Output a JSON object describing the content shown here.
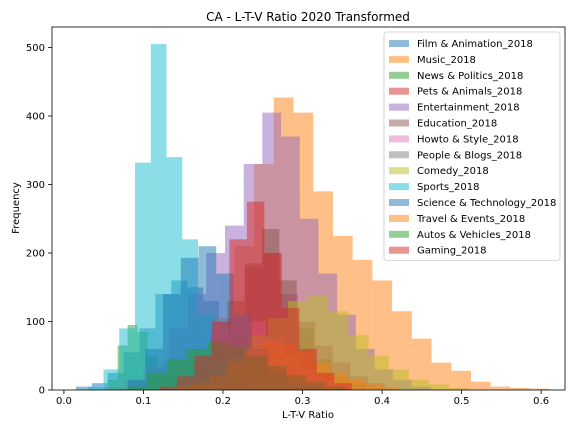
{
  "chart_data": {
    "type": "bar",
    "title": "CA - L-T-V Ratio 2020 Transformed",
    "xlabel": "L-T-V Ratio",
    "ylabel": "Frequency",
    "xlim": [
      -0.015,
      0.63
    ],
    "ylim": [
      0,
      530
    ],
    "xticks": [
      "0.0",
      "0.1",
      "0.2",
      "0.3",
      "0.4",
      "0.5",
      "0.6"
    ],
    "xtick_values": [
      0.0,
      0.1,
      0.2,
      0.3,
      0.4,
      0.5,
      0.6
    ],
    "yticks": [
      "0",
      "100",
      "200",
      "300",
      "400",
      "500"
    ],
    "ytick_values": [
      0,
      100,
      200,
      300,
      400,
      500
    ],
    "grid": false,
    "legend_position": "top-right",
    "opacity": 0.5,
    "series": [
      {
        "name": "Film & Animation_2018",
        "color": "#1f77b4",
        "x0": 0.015,
        "bin": 0.02,
        "values": [
          5,
          10,
          25,
          55,
          90,
          140,
          160,
          150,
          130,
          100,
          80,
          50,
          35,
          25,
          15,
          10,
          5,
          3
        ]
      },
      {
        "name": "Music_2018",
        "color": "#ff7f0e",
        "x0": 0.115,
        "bin": 0.0248,
        "values": [
          5,
          15,
          40,
          105,
          210,
          330,
          427,
          405,
          290,
          225,
          190,
          160,
          115,
          75,
          40,
          28,
          12,
          5,
          3,
          2
        ]
      },
      {
        "name": "News & Politics_2018",
        "color": "#2ca02c",
        "x0": 0.055,
        "bin": 0.0125,
        "values": [
          15,
          65,
          95,
          85,
          50,
          30,
          20,
          12,
          8,
          5,
          3,
          2
        ]
      },
      {
        "name": "Pets & Animals_2018",
        "color": "#d62728",
        "x0": 0.14,
        "bin": 0.022,
        "values": [
          5,
          40,
          80,
          105,
          180,
          200,
          140,
          100,
          65,
          40,
          20,
          10
        ]
      },
      {
        "name": "Entertainment_2018",
        "color": "#9467bd",
        "x0": 0.085,
        "bin": 0.0235,
        "values": [
          10,
          35,
          90,
          140,
          200,
          240,
          330,
          405,
          370,
          250,
          170,
          110,
          60,
          30,
          15,
          5
        ]
      },
      {
        "name": "Education_2018",
        "color": "#8c564b",
        "x0": 0.14,
        "bin": 0.0218,
        "values": [
          10,
          40,
          75,
          130,
          185,
          235,
          160,
          90,
          45,
          20,
          10
        ]
      },
      {
        "name": "Howto & Style_2018",
        "color": "#e377c2",
        "x0": 0.1,
        "bin": 0.022,
        "values": [
          5,
          15,
          35,
          60,
          90,
          110,
          100,
          75,
          50,
          30,
          15,
          8
        ]
      },
      {
        "name": "People & Blogs_2018",
        "color": "#7f7f7f",
        "x0": 0.05,
        "bin": 0.025,
        "values": [
          5,
          15,
          30,
          45,
          60,
          65,
          55,
          40,
          25,
          15,
          8,
          4,
          2
        ]
      },
      {
        "name": "Comedy_2018",
        "color": "#bcbd22",
        "x0": 0.13,
        "bin": 0.0253,
        "values": [
          5,
          12,
          25,
          50,
          80,
          105,
          130,
          138,
          115,
          80,
          50,
          30,
          15,
          8,
          3
        ]
      },
      {
        "name": "Sports_2018",
        "color": "#17becf",
        "x0": 0.03,
        "bin": 0.0198,
        "values": [
          5,
          30,
          90,
          332,
          505,
          340,
          220,
          110,
          40,
          15,
          5
        ]
      },
      {
        "name": "Science & Technology_2018",
        "color": "#1f77b4",
        "x0": 0.08,
        "bin": 0.0223,
        "values": [
          15,
          60,
          140,
          193,
          210,
          170,
          110,
          60,
          25,
          10,
          5
        ]
      },
      {
        "name": "Travel & Events_2018",
        "color": "#ff7f0e",
        "x0": 0.14,
        "bin": 0.0217,
        "values": [
          5,
          10,
          20,
          40,
          60,
          70,
          68,
          55,
          40,
          25,
          15,
          8,
          4
        ]
      },
      {
        "name": "Autos & Vehicles_2018",
        "color": "#2ca02c",
        "x0": 0.08,
        "bin": 0.025,
        "values": [
          5,
          25,
          45,
          60,
          70,
          65,
          50,
          35,
          22,
          12,
          5
        ]
      },
      {
        "name": "Gaming_2018",
        "color": "#d62728",
        "x0": 0.12,
        "bin": 0.022,
        "values": [
          5,
          20,
          50,
          100,
          220,
          275,
          200,
          120,
          60,
          25,
          10
        ]
      }
    ]
  }
}
